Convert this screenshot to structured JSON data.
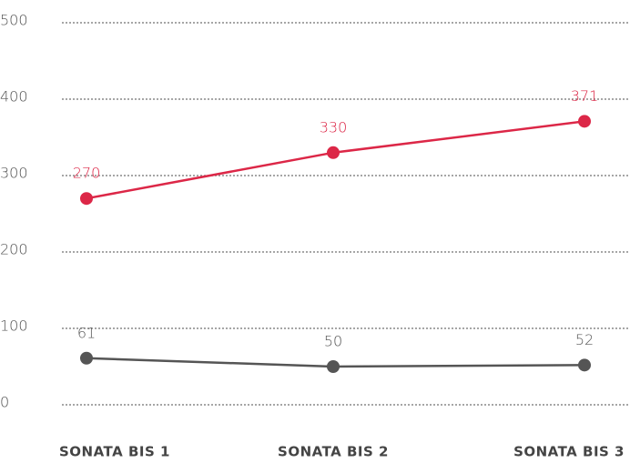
{
  "chart_data": {
    "type": "line",
    "categories": [
      "SONATA BIS 1",
      "SONATA BIS 2",
      "SONATA BIS 3"
    ],
    "series": [
      {
        "color": "#dc2747",
        "values": [
          270,
          330,
          371
        ]
      },
      {
        "color": "#555555",
        "values": [
          61,
          50,
          52
        ]
      }
    ],
    "ylim": [
      0,
      500
    ],
    "yticks": [
      0,
      100,
      200,
      300,
      400,
      500
    ],
    "grid": true
  }
}
